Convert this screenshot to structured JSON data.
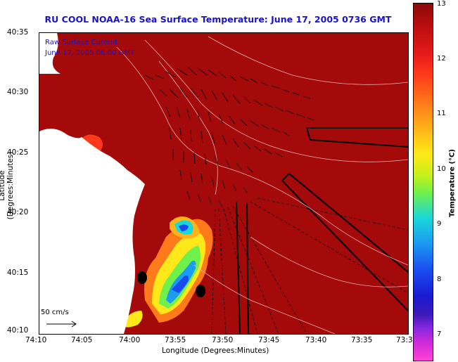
{
  "title": "RU COOL  NOAA-16  Sea Surface Temperature:  June 17, 2005 0736 GMT",
  "inset": {
    "line1": "Raw Surface Current",
    "line2": "June 17, 2005 06:00 GMT"
  },
  "axes": {
    "ylabel": "Latitude (Degrees:Minutes)",
    "xlabel": "Longitude (Degrees:Minutes)",
    "yticks": [
      "40:35",
      "40:30",
      "40:25",
      "40:20",
      "40:15",
      "40:10"
    ],
    "xticks": [
      "74:10",
      "74:05",
      "74:00",
      "73:55",
      "73:50",
      "73:45",
      "73:40",
      "73:35",
      "73:3"
    ]
  },
  "scale_vector": "50 cm/s",
  "colorbar": {
    "label": "Temperature (°C)",
    "ticks": [
      "13",
      "12",
      "11",
      "10",
      "9",
      "8",
      "7"
    ]
  },
  "chart_data": {
    "type": "heatmap",
    "title": "RU COOL  NOAA-16  Sea Surface Temperature:  June 17, 2005 0736 GMT",
    "xlabel": "Longitude (Degrees:Minutes)",
    "ylabel": "Latitude (Degrees:Minutes)",
    "colorbar_label": "Temperature (°C)",
    "colorbar_range": [
      6.5,
      13
    ],
    "lat_range": [
      "40:10",
      "40:35"
    ],
    "lon_range": [
      "74:10",
      "73:3"
    ]
  },
  "colors": {
    "title": "#1a14c8",
    "warm_water": "#a40a0a",
    "land": "#ffffff"
  }
}
